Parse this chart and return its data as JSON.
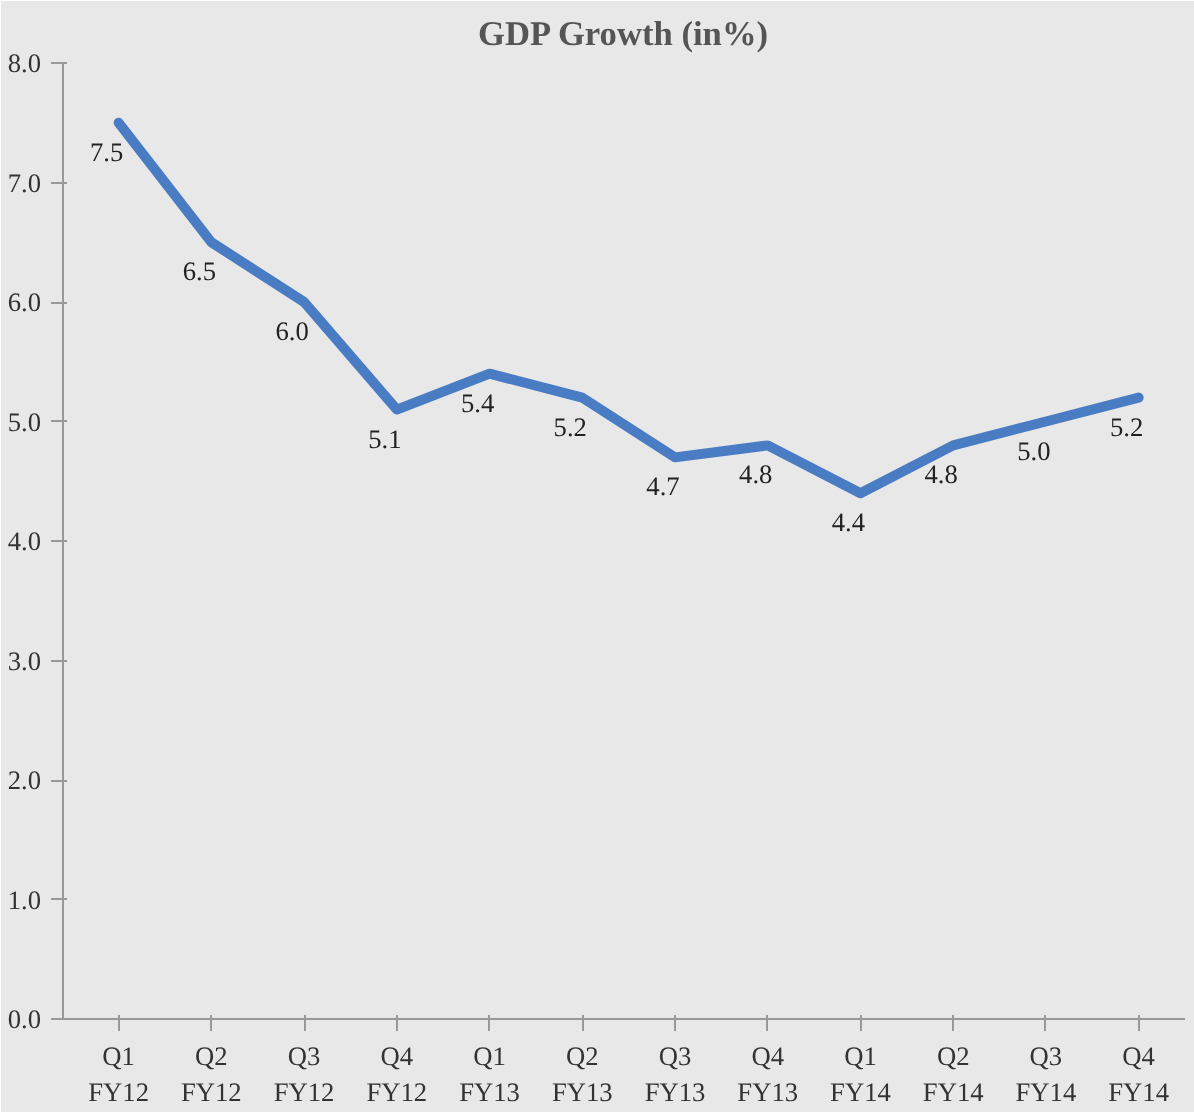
{
  "chart_data": {
    "type": "line",
    "title": "GDP Growth (in%)",
    "categories": [
      "Q1\nFY12",
      "Q2\nFY12",
      "Q3\nFY12",
      "Q4\nFY12",
      "Q1\nFY13",
      "Q2\nFY13",
      "Q3\nFY13",
      "Q4\nFY13",
      "Q1\nFY14",
      "Q2\nFY14",
      "Q3\nFY14",
      "Q4\nFY14"
    ],
    "series": [
      {
        "color": "#4a7cc4",
        "values": [
          7.5,
          6.5,
          6.0,
          5.1,
          5.4,
          5.2,
          4.7,
          4.8,
          4.4,
          4.8,
          5.0,
          5.2
        ]
      }
    ],
    "value_labels": [
      "7.5",
      "6.5",
      "6.0",
      "5.1",
      "5.4",
      "5.2",
      "4.7",
      "4.8",
      "4.4",
      "4.8",
      "5.0",
      "5.2"
    ],
    "ylim": [
      0,
      8
    ],
    "yticks": [
      {
        "value": 0,
        "label": "0.0"
      },
      {
        "value": 1,
        "label": "1.0"
      },
      {
        "value": 2,
        "label": "2.0"
      },
      {
        "value": 3,
        "label": "3.0"
      },
      {
        "value": 4,
        "label": "4.0"
      },
      {
        "value": 5,
        "label": "5.0"
      },
      {
        "value": 6,
        "label": "6.0"
      },
      {
        "value": 7,
        "label": "7.0"
      },
      {
        "value": 8,
        "label": "8.0"
      }
    ],
    "marker": "none",
    "line_style": "solid"
  }
}
